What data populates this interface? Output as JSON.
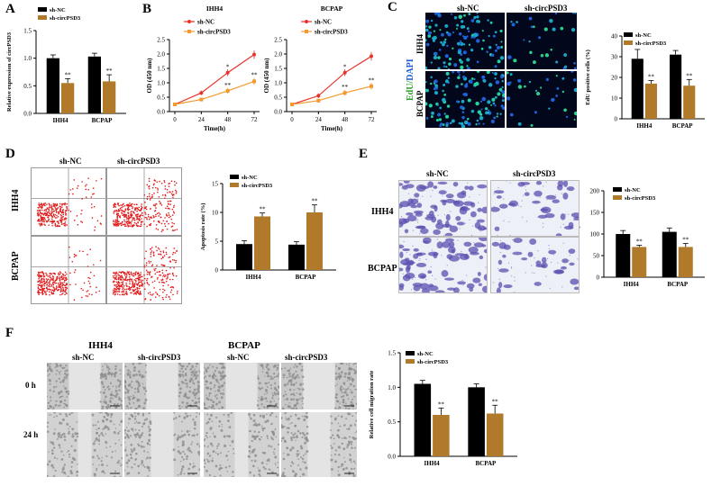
{
  "panels": {
    "A": "A",
    "B": "B",
    "C": "C",
    "D": "D",
    "E": "E",
    "F": "F"
  },
  "legend": {
    "nc": "sh-NC",
    "circ": "sh-circPSD3"
  },
  "colors": {
    "nc_bar": "#000000",
    "circ_bar": "#b07a2a",
    "nc_line": "#e8332a",
    "circ_line": "#f39a2e"
  },
  "significance": "**",
  "images": {
    "col_nc": "sh-NC",
    "col_circ": "sh-circPSD3",
    "row_ihh4": "IHH4",
    "row_bcpap": "BCPAP",
    "edu_label_a": "EdU/",
    "edu_label_b": "DAPI",
    "f_ihh4": "IHH4",
    "f_bcpap": "BCPAP",
    "t0": "0 h",
    "t24": "24 h"
  },
  "chart_data": [
    {
      "id": "A",
      "type": "bar",
      "categories": [
        "IHH4",
        "BCPAP"
      ],
      "series": [
        {
          "name": "sh-NC",
          "values": [
            1.0,
            1.03
          ],
          "err": [
            0.06,
            0.06
          ]
        },
        {
          "name": "sh-circPSD3",
          "values": [
            0.55,
            0.58
          ],
          "err": [
            0.08,
            0.12
          ]
        }
      ],
      "ylabel": "Relative expression of circPSD3",
      "ylim": [
        0,
        1.5
      ],
      "yticks": [
        0.0,
        0.5,
        1.0,
        1.5
      ],
      "yticklabels": [
        "0.0",
        "0.5",
        "1.0",
        "1.5"
      ]
    },
    {
      "id": "B1",
      "type": "line",
      "title": "IHH4",
      "x": [
        0,
        24,
        48,
        72
      ],
      "series": [
        {
          "name": "sh-NC",
          "values": [
            0.25,
            0.65,
            1.35,
            1.98
          ],
          "err": [
            0.04,
            0.08,
            0.12,
            0.15
          ]
        },
        {
          "name": "sh-circPSD3",
          "values": [
            0.25,
            0.42,
            0.72,
            1.05
          ],
          "err": [
            0.04,
            0.06,
            0.1,
            0.12
          ]
        }
      ],
      "xlabel": "Time(h)",
      "ylabel": "OD (450 nm)",
      "ylim": [
        0,
        2.5
      ],
      "yticks": [
        0,
        0.5,
        1.0,
        1.5,
        2.0,
        2.5
      ],
      "yticklabels": [
        "0.0",
        "0.5",
        "1.0",
        "1.5",
        "2.0",
        "2.5"
      ],
      "xticklabels": [
        "0",
        "24",
        "48",
        "72"
      ],
      "sig": [
        {
          "x": 48,
          "y": 1.48,
          "t": "*"
        },
        {
          "x": 48,
          "y": 0.84,
          "t": "**"
        },
        {
          "x": 72,
          "y": 1.2,
          "t": "**"
        }
      ]
    },
    {
      "id": "B2",
      "type": "line",
      "title": "BCPAP",
      "x": [
        0,
        24,
        48,
        72
      ],
      "series": [
        {
          "name": "sh-NC",
          "values": [
            0.25,
            0.55,
            1.35,
            1.92
          ],
          "err": [
            0.04,
            0.08,
            0.12,
            0.15
          ]
        },
        {
          "name": "sh-circPSD3",
          "values": [
            0.25,
            0.38,
            0.65,
            0.88
          ],
          "err": [
            0.04,
            0.06,
            0.1,
            0.12
          ]
        }
      ],
      "xlabel": "Time(h)",
      "ylabel": "OD (450 nm)",
      "ylim": [
        0,
        2.5
      ],
      "yticks": [
        0,
        0.5,
        1.0,
        1.5,
        2.0,
        2.5
      ],
      "yticklabels": [
        "0.0",
        "0.5",
        "1.0",
        "1.5",
        "2.0",
        "2.5"
      ],
      "xticklabels": [
        "0",
        "24",
        "48",
        "72"
      ],
      "sig": [
        {
          "x": 48,
          "y": 1.48,
          "t": "*"
        },
        {
          "x": 48,
          "y": 0.78,
          "t": "**"
        },
        {
          "x": 72,
          "y": 1.02,
          "t": "**"
        }
      ]
    },
    {
      "id": "C",
      "type": "bar",
      "categories": [
        "IHH4",
        "BCPAP"
      ],
      "series": [
        {
          "name": "sh-NC",
          "values": [
            29,
            31
          ],
          "err": [
            4.5,
            2
          ]
        },
        {
          "name": "sh-circPSD3",
          "values": [
            17,
            16
          ],
          "err": [
            1.5,
            3
          ]
        }
      ],
      "ylabel": "EdU positive cells (%)",
      "ylim": [
        0,
        40
      ],
      "yticks": [
        0,
        10,
        20,
        30,
        40
      ],
      "yticklabels": [
        "0",
        "10",
        "20",
        "30",
        "40"
      ]
    },
    {
      "id": "D",
      "type": "bar",
      "categories": [
        "IHH4",
        "BCPAP"
      ],
      "series": [
        {
          "name": "sh-NC",
          "values": [
            4.5,
            4.4
          ],
          "err": [
            0.6,
            0.5
          ]
        },
        {
          "name": "sh-circPSD3",
          "values": [
            9.3,
            10.0
          ],
          "err": [
            0.6,
            1.3
          ]
        }
      ],
      "ylabel": "Apoptosis rate (%)",
      "ylim": [
        0,
        15
      ],
      "yticks": [
        0,
        5,
        10,
        15
      ],
      "yticklabels": [
        "0",
        "5",
        "10",
        "15"
      ]
    },
    {
      "id": "E",
      "type": "bar",
      "categories": [
        "IHH4",
        "BCPAP"
      ],
      "series": [
        {
          "name": "sh-NC",
          "values": [
            100,
            105
          ],
          "err": [
            8,
            9
          ]
        },
        {
          "name": "sh-circPSD3",
          "values": [
            70,
            70
          ],
          "err": [
            4,
            8
          ]
        }
      ],
      "ylabel": "Cell number per field",
      "ylim": [
        0,
        200
      ],
      "yticks": [
        0,
        50,
        100,
        150,
        200
      ],
      "yticklabels": [
        "0",
        "50",
        "100",
        "150",
        "200"
      ]
    },
    {
      "id": "F",
      "type": "bar",
      "categories": [
        "IHH4",
        "BCPAP"
      ],
      "series": [
        {
          "name": "sh-NC",
          "values": [
            1.05,
            1.0
          ],
          "err": [
            0.05,
            0.05
          ]
        },
        {
          "name": "sh-circPSD3",
          "values": [
            0.6,
            0.62
          ],
          "err": [
            0.1,
            0.12
          ]
        }
      ],
      "ylabel": "Relative cell migration rate",
      "ylim": [
        0,
        1.5
      ],
      "yticks": [
        0.0,
        0.5,
        1.0,
        1.5
      ],
      "yticklabels": [
        "0.0",
        "0.5",
        "1.0",
        "1.5"
      ]
    }
  ]
}
